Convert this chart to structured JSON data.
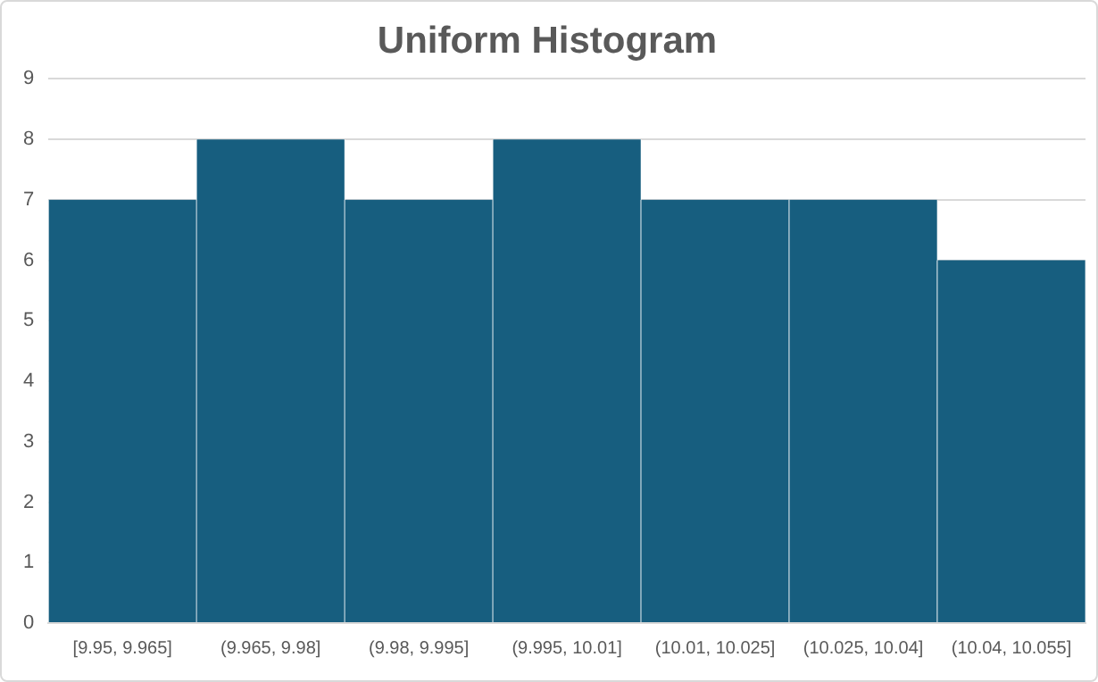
{
  "chart_data": {
    "type": "bar",
    "title": "Uniform Histogram",
    "categories": [
      "[9.95, 9.965]",
      "(9.965, 9.98]",
      "(9.98, 9.995]",
      "(9.995, 10.01]",
      "(10.01, 10.025]",
      "(10.025, 10.04]",
      "(10.04, 10.055]"
    ],
    "values": [
      7,
      8,
      7,
      8,
      7,
      7,
      6
    ],
    "color": "#175e7f",
    "ylim": [
      0,
      9
    ],
    "yticks": [
      0,
      1,
      2,
      3,
      4,
      5,
      6,
      7,
      8,
      9
    ],
    "grid": "y",
    "legend": false
  }
}
